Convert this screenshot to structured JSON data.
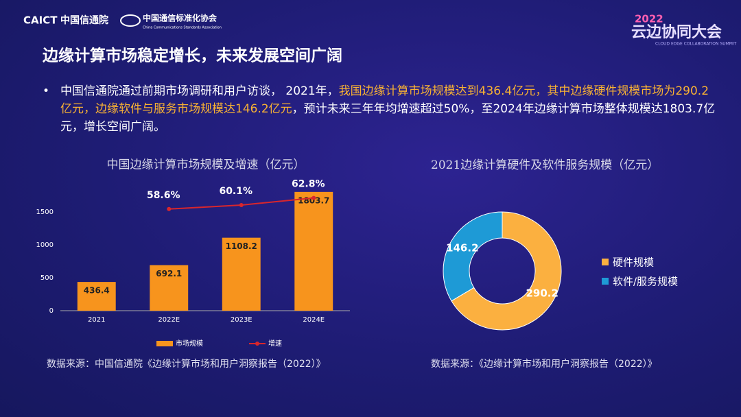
{
  "logos": {
    "caict": "CAICT",
    "caict_cn": "中国信通院",
    "ccsa": "中国通信标准化协会",
    "ccsa_en": "China Communications Standards Association",
    "event_year": "2022",
    "event": "云边协同大会",
    "event_en": "CLOUD EDGE COLLABORATION SUMMIT"
  },
  "title": "边缘计算市场稳定增长，未来发展空间广阔",
  "bullet": {
    "part1": "中国信通院通过前期市场调研和用户访谈， 2021年，",
    "highlight": "我国边缘计算市场规模达到436.4亿元，其中边缘硬件规模市场为290.2亿元，边缘软件与服务市场规模达146.2亿元",
    "part2": "，预计未来三年年均增速超过50%，至2024年边缘计算市场整体规模达1803.7亿元，增长空间广阔。"
  },
  "chart_data": [
    {
      "type": "bar",
      "title": "中国边缘计算市场规模及增速（亿元）",
      "categories": [
        "2021",
        "2022E",
        "2023E",
        "2024E"
      ],
      "series": [
        {
          "name": "市场规模",
          "color": "#f7941d",
          "values": [
            436.4,
            692.1,
            1108.2,
            1803.7
          ]
        },
        {
          "name": "增速",
          "color": "#d9262c",
          "axis": "y2",
          "type": "line",
          "values": [
            null,
            58.6,
            60.1,
            62.8
          ],
          "value_labels": [
            null,
            "58.6%",
            "60.1%",
            "62.8%"
          ]
        }
      ],
      "ylim": [
        0,
        2000
      ],
      "yticks": [
        0,
        500,
        1000,
        1500
      ],
      "y2lim": [
        20,
        70
      ],
      "grid": false,
      "legend": "bottom",
      "source": "数据来源：中国信通院《边缘计算市场和用户洞察报告（2022）》"
    },
    {
      "type": "donut",
      "title": "2021边缘计算硬件及软件服务规模（亿元）",
      "categories": [
        "硬件规模",
        "软件/服务规模"
      ],
      "values": [
        290.2,
        146.2
      ],
      "colors": [
        "#fbb040",
        "#1e9ad6"
      ],
      "legend": "right",
      "source": "数据来源：《边缘计算市场和用户洞察报告（2022）》"
    }
  ]
}
